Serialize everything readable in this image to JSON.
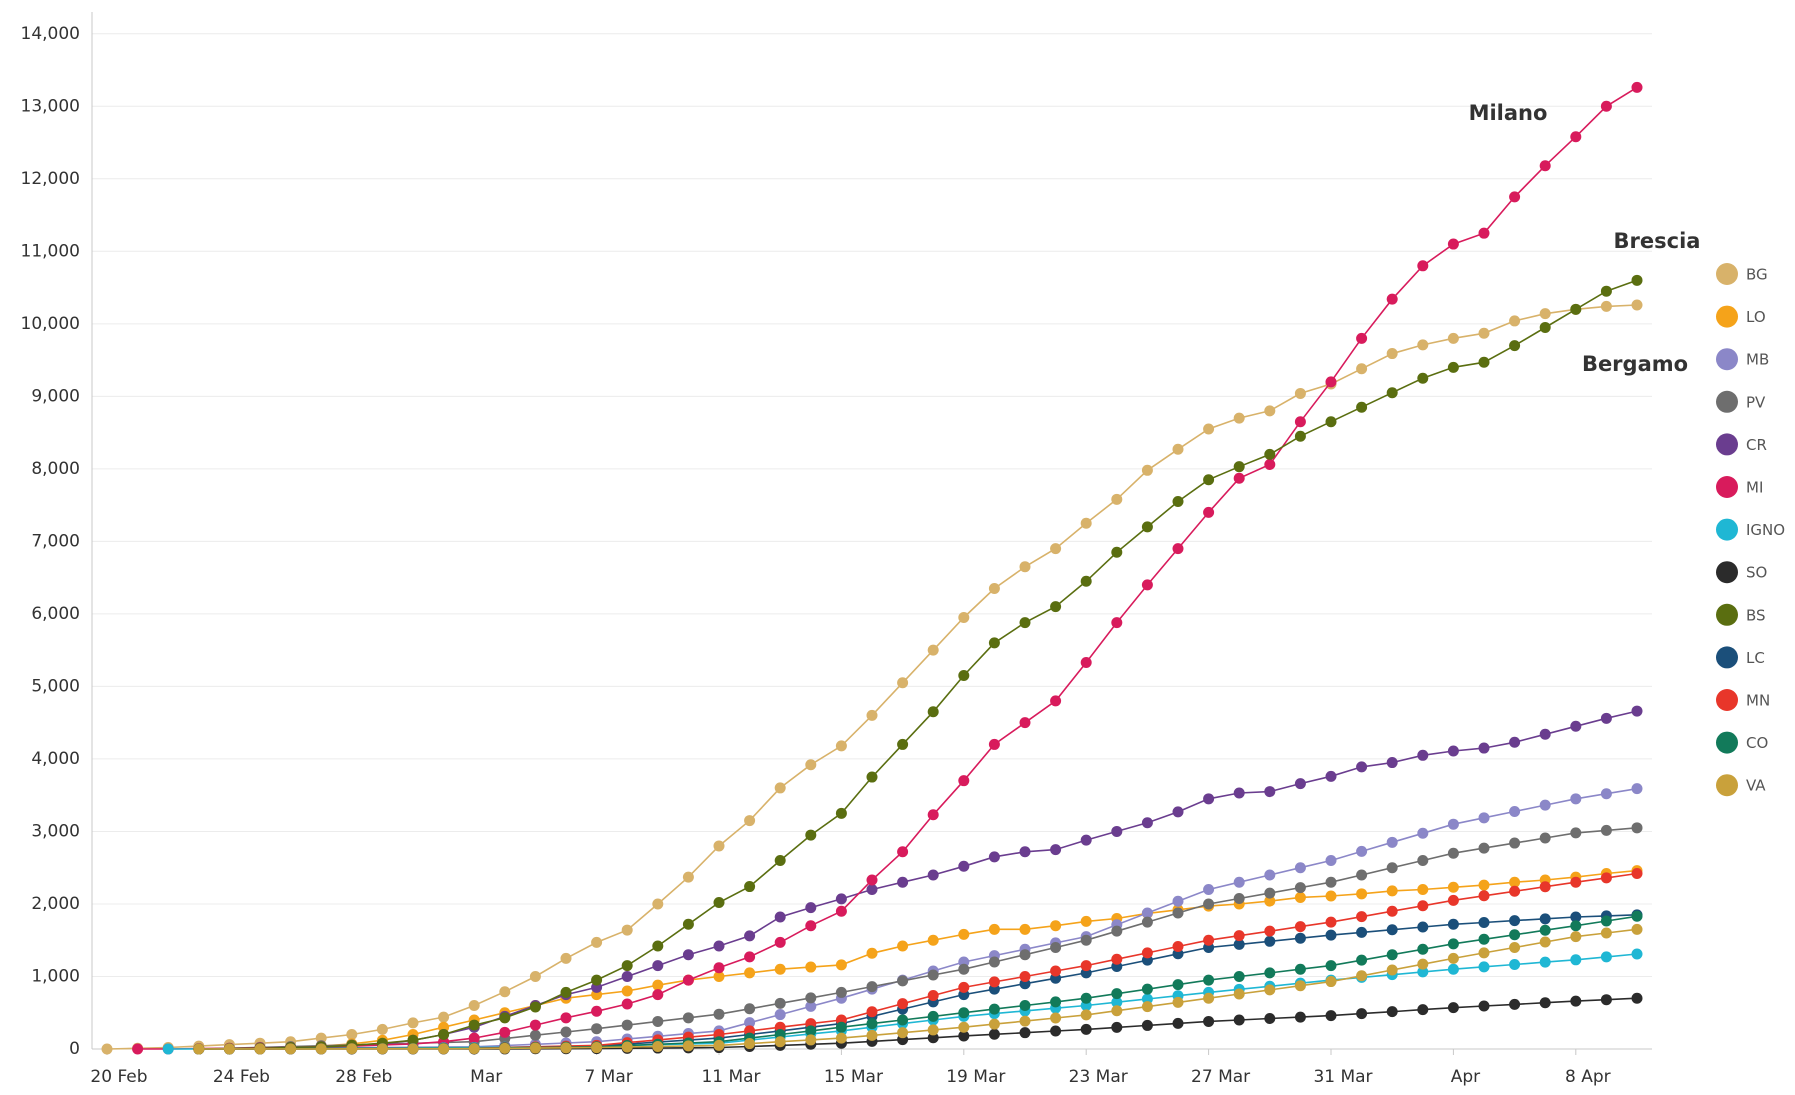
{
  "chart_data": {
    "type": "line",
    "categories": [
      "20 Feb",
      "21 Feb",
      "22 Feb",
      "23 Feb",
      "24 Feb",
      "25 Feb",
      "26 Feb",
      "27 Feb",
      "28 Feb",
      "29 Feb",
      "1 Mar",
      "2 Mar",
      "3 Mar",
      "4 Mar",
      "5 Mar",
      "6 Mar",
      "7 Mar",
      "8 Mar",
      "9 Mar",
      "10 Mar",
      "11 Mar",
      "12 Mar",
      "13 Mar",
      "14 Mar",
      "15 Mar",
      "16 Mar",
      "17 Mar",
      "18 Mar",
      "19 Mar",
      "20 Mar",
      "21 Mar",
      "22 Mar",
      "23 Mar",
      "24 Mar",
      "25 Mar",
      "26 Mar",
      "27 Mar",
      "28 Mar",
      "29 Mar",
      "30 Mar",
      "31 Mar",
      "1 Apr",
      "2 Apr",
      "3 Apr",
      "4 Apr",
      "5 Apr",
      "6 Apr",
      "7 Apr",
      "8 Apr",
      "9 Apr",
      "10 Apr"
    ],
    "xticks": [
      "20 Feb",
      "24 Feb",
      "28 Feb",
      {
        "value": "3 Mar",
        "label": "Mar"
      },
      "7 Mar",
      "11 Mar",
      "15 Mar",
      "19 Mar",
      "23 Mar",
      "27 Mar",
      "31 Mar",
      {
        "value": "4 Apr",
        "label": "Apr"
      },
      "8 Apr"
    ],
    "ylim": [
      0,
      14300
    ],
    "yticks": [
      0,
      {
        "value": 1000,
        "label": "1,000"
      },
      {
        "value": 2000,
        "label": "2,000"
      },
      {
        "value": 3000,
        "label": "3,000"
      },
      {
        "value": 4000,
        "label": "4,000"
      },
      {
        "value": 5000,
        "label": "5,000"
      },
      {
        "value": 6000,
        "label": "6,000"
      },
      {
        "value": 7000,
        "label": "7,000"
      },
      {
        "value": 8000,
        "label": "8,000"
      },
      {
        "value": 9000,
        "label": "9,000"
      },
      {
        "value": 10000,
        "label": "10,000"
      },
      {
        "value": 11000,
        "label": "11,000"
      },
      {
        "value": 12000,
        "label": "12,000"
      },
      {
        "value": 13000,
        "label": "13,000"
      },
      {
        "value": 14000,
        "label": "14,000"
      }
    ],
    "grid": true,
    "legend": "right",
    "annotations": [
      {
        "text": "Milano",
        "color": "#e8168a"
      },
      {
        "text": "Brescia",
        "color": "#2eb84a"
      },
      {
        "text": "Bergamo",
        "color": "#9a9a1a"
      }
    ],
    "series": [
      {
        "name": "BG",
        "color": "#d8b26a",
        "values": [
          0,
          10,
          20,
          40,
          60,
          80,
          100,
          150,
          200,
          270,
          360,
          440,
          600,
          790,
          1000,
          1250,
          1470,
          1640,
          2000,
          2370,
          2800,
          3150,
          3600,
          3920,
          4180,
          4600,
          5050,
          5500,
          5950,
          6350,
          6650,
          6900,
          7250,
          7580,
          7980,
          8270,
          8550,
          8700,
          8800,
          9040,
          9170,
          9380,
          9590,
          9710,
          9800,
          9870,
          10040,
          10140,
          10200,
          10240,
          10260
        ]
      },
      {
        "name": "LO",
        "color": "#f5a31a",
        "values": [
          null,
          null,
          null,
          0,
          5,
          10,
          20,
          40,
          70,
          120,
          200,
          300,
          400,
          500,
          600,
          700,
          750,
          800,
          880,
          950,
          1000,
          1050,
          1100,
          1130,
          1160,
          1320,
          1420,
          1500,
          1580,
          1650,
          1650,
          1700,
          1760,
          1800,
          1870,
          1920,
          1970,
          2000,
          2040,
          2090,
          2110,
          2140,
          2180,
          2200,
          2230,
          2260,
          2300,
          2330,
          2370,
          2420,
          2460
        ]
      },
      {
        "name": "MB",
        "color": "#8b87c8",
        "values": [
          null,
          null,
          null,
          0,
          3,
          7,
          10,
          13,
          17,
          20,
          23,
          27,
          30,
          48,
          65,
          83,
          100,
          138,
          175,
          213,
          250,
          363,
          475,
          588,
          700,
          825,
          950,
          1075,
          1200,
          1288,
          1375,
          1463,
          1550,
          1713,
          1875,
          2038,
          2200,
          2300,
          2400,
          2500,
          2600,
          2725,
          2850,
          2975,
          3100,
          3188,
          3275,
          3363,
          3450,
          3520,
          3590
        ]
      },
      {
        "name": "PV",
        "color": "#6e6e6e",
        "values": [
          null,
          null,
          null,
          0,
          11,
          22,
          33,
          44,
          56,
          67,
          78,
          89,
          100,
          145,
          190,
          235,
          280,
          330,
          380,
          430,
          480,
          555,
          630,
          705,
          780,
          860,
          940,
          1020,
          1100,
          1200,
          1300,
          1400,
          1500,
          1625,
          1750,
          1875,
          2000,
          2075,
          2150,
          2225,
          2300,
          2400,
          2500,
          2600,
          2700,
          2770,
          2840,
          2910,
          2980,
          3015,
          3050
        ]
      },
      {
        "name": "CR",
        "color": "#6a3d8f",
        "values": [
          null,
          null,
          null,
          0,
          5,
          10,
          15,
          25,
          40,
          70,
          120,
          200,
          300,
          450,
          600,
          750,
          850,
          1000,
          1150,
          1300,
          1420,
          1560,
          1820,
          1950,
          2070,
          2200,
          2300,
          2400,
          2520,
          2650,
          2720,
          2750,
          2880,
          3000,
          3120,
          3270,
          3450,
          3530,
          3550,
          3660,
          3760,
          3890,
          3950,
          4050,
          4110,
          4150,
          4230,
          4340,
          4450,
          4560,
          4660
        ]
      },
      {
        "name": "MI",
        "color": "#d81b5c",
        "values": [
          null,
          0,
          0,
          5,
          10,
          15,
          20,
          30,
          40,
          55,
          70,
          100,
          150,
          230,
          330,
          430,
          520,
          620,
          750,
          950,
          1120,
          1270,
          1470,
          1700,
          1900,
          2330,
          2720,
          3230,
          3700,
          4200,
          4500,
          4800,
          5330,
          5880,
          6400,
          6900,
          7400,
          7870,
          8060,
          8650,
          9200,
          9800,
          10340,
          10800,
          11100,
          11250,
          11750,
          12180,
          12580,
          13000,
          13260
        ]
      },
      {
        "name": "IGNO",
        "color": "#1fb7d4",
        "values": [
          null,
          null,
          0,
          2,
          4,
          6,
          8,
          10,
          12,
          14,
          16,
          18,
          20,
          25,
          30,
          35,
          40,
          50,
          60,
          70,
          80,
          123,
          165,
          208,
          250,
          300,
          350,
          400,
          450,
          488,
          525,
          563,
          600,
          645,
          690,
          735,
          780,
          823,
          865,
          908,
          950,
          988,
          1025,
          1063,
          1100,
          1133,
          1165,
          1198,
          1230,
          1270,
          1310
        ]
      },
      {
        "name": "SO",
        "color": "#2b2b2b",
        "values": [
          null,
          null,
          null,
          0,
          0,
          0,
          0,
          0,
          0,
          0,
          0,
          0,
          0,
          1,
          3,
          4,
          5,
          9,
          13,
          16,
          20,
          35,
          50,
          65,
          80,
          105,
          130,
          155,
          180,
          203,
          225,
          248,
          270,
          298,
          325,
          353,
          380,
          400,
          420,
          440,
          460,
          488,
          515,
          543,
          570,
          593,
          615,
          638,
          660,
          680,
          700
        ]
      },
      {
        "name": "BS",
        "color": "#5a6e10",
        "values": [
          null,
          null,
          null,
          0,
          5,
          10,
          20,
          30,
          50,
          80,
          120,
          200,
          330,
          430,
          580,
          780,
          950,
          1150,
          1420,
          1720,
          2020,
          2240,
          2600,
          2950,
          3250,
          3750,
          4200,
          4650,
          5150,
          5600,
          5880,
          6100,
          6450,
          6850,
          7200,
          7550,
          7850,
          8030,
          8200,
          8450,
          8650,
          8850,
          9050,
          9250,
          9400,
          9470,
          9700,
          9950,
          10200,
          10450,
          10600
        ]
      },
      {
        "name": "LC",
        "color": "#1b4f7a",
        "values": [
          null,
          null,
          null,
          0,
          1,
          2,
          3,
          4,
          6,
          7,
          8,
          9,
          10,
          18,
          25,
          33,
          40,
          68,
          95,
          123,
          150,
          200,
          250,
          300,
          350,
          450,
          550,
          650,
          750,
          825,
          900,
          975,
          1050,
          1138,
          1225,
          1313,
          1400,
          1443,
          1485,
          1528,
          1570,
          1608,
          1645,
          1683,
          1720,
          1745,
          1770,
          1795,
          1820,
          1835,
          1850
        ]
      },
      {
        "name": "MN",
        "color": "#e8362a",
        "values": [
          null,
          null,
          null,
          0,
          1,
          2,
          3,
          4,
          6,
          7,
          8,
          9,
          10,
          20,
          30,
          40,
          50,
          88,
          125,
          163,
          200,
          250,
          300,
          350,
          400,
          513,
          625,
          738,
          850,
          925,
          1000,
          1075,
          1150,
          1238,
          1325,
          1413,
          1500,
          1563,
          1625,
          1688,
          1750,
          1825,
          1900,
          1975,
          2050,
          2113,
          2175,
          2238,
          2300,
          2360,
          2420
        ]
      },
      {
        "name": "CO",
        "color": "#127a5a",
        "values": [
          null,
          null,
          null,
          0,
          1,
          2,
          3,
          4,
          6,
          7,
          8,
          9,
          10,
          15,
          20,
          25,
          30,
          48,
          65,
          83,
          100,
          150,
          200,
          250,
          300,
          350,
          400,
          450,
          500,
          550,
          600,
          650,
          700,
          763,
          825,
          888,
          950,
          1000,
          1050,
          1100,
          1150,
          1225,
          1300,
          1375,
          1450,
          1513,
          1575,
          1638,
          1700,
          1765,
          1830
        ]
      },
      {
        "name": "VA",
        "color": "#c9a13b",
        "values": [
          null,
          null,
          null,
          0,
          1,
          1,
          2,
          2,
          3,
          3,
          4,
          4,
          5,
          9,
          13,
          16,
          20,
          28,
          35,
          43,
          50,
          75,
          100,
          125,
          150,
          188,
          225,
          263,
          300,
          343,
          385,
          428,
          470,
          528,
          585,
          643,
          700,
          758,
          815,
          873,
          930,
          1010,
          1090,
          1170,
          1250,
          1325,
          1400,
          1475,
          1550,
          1600,
          1650
        ]
      }
    ]
  }
}
